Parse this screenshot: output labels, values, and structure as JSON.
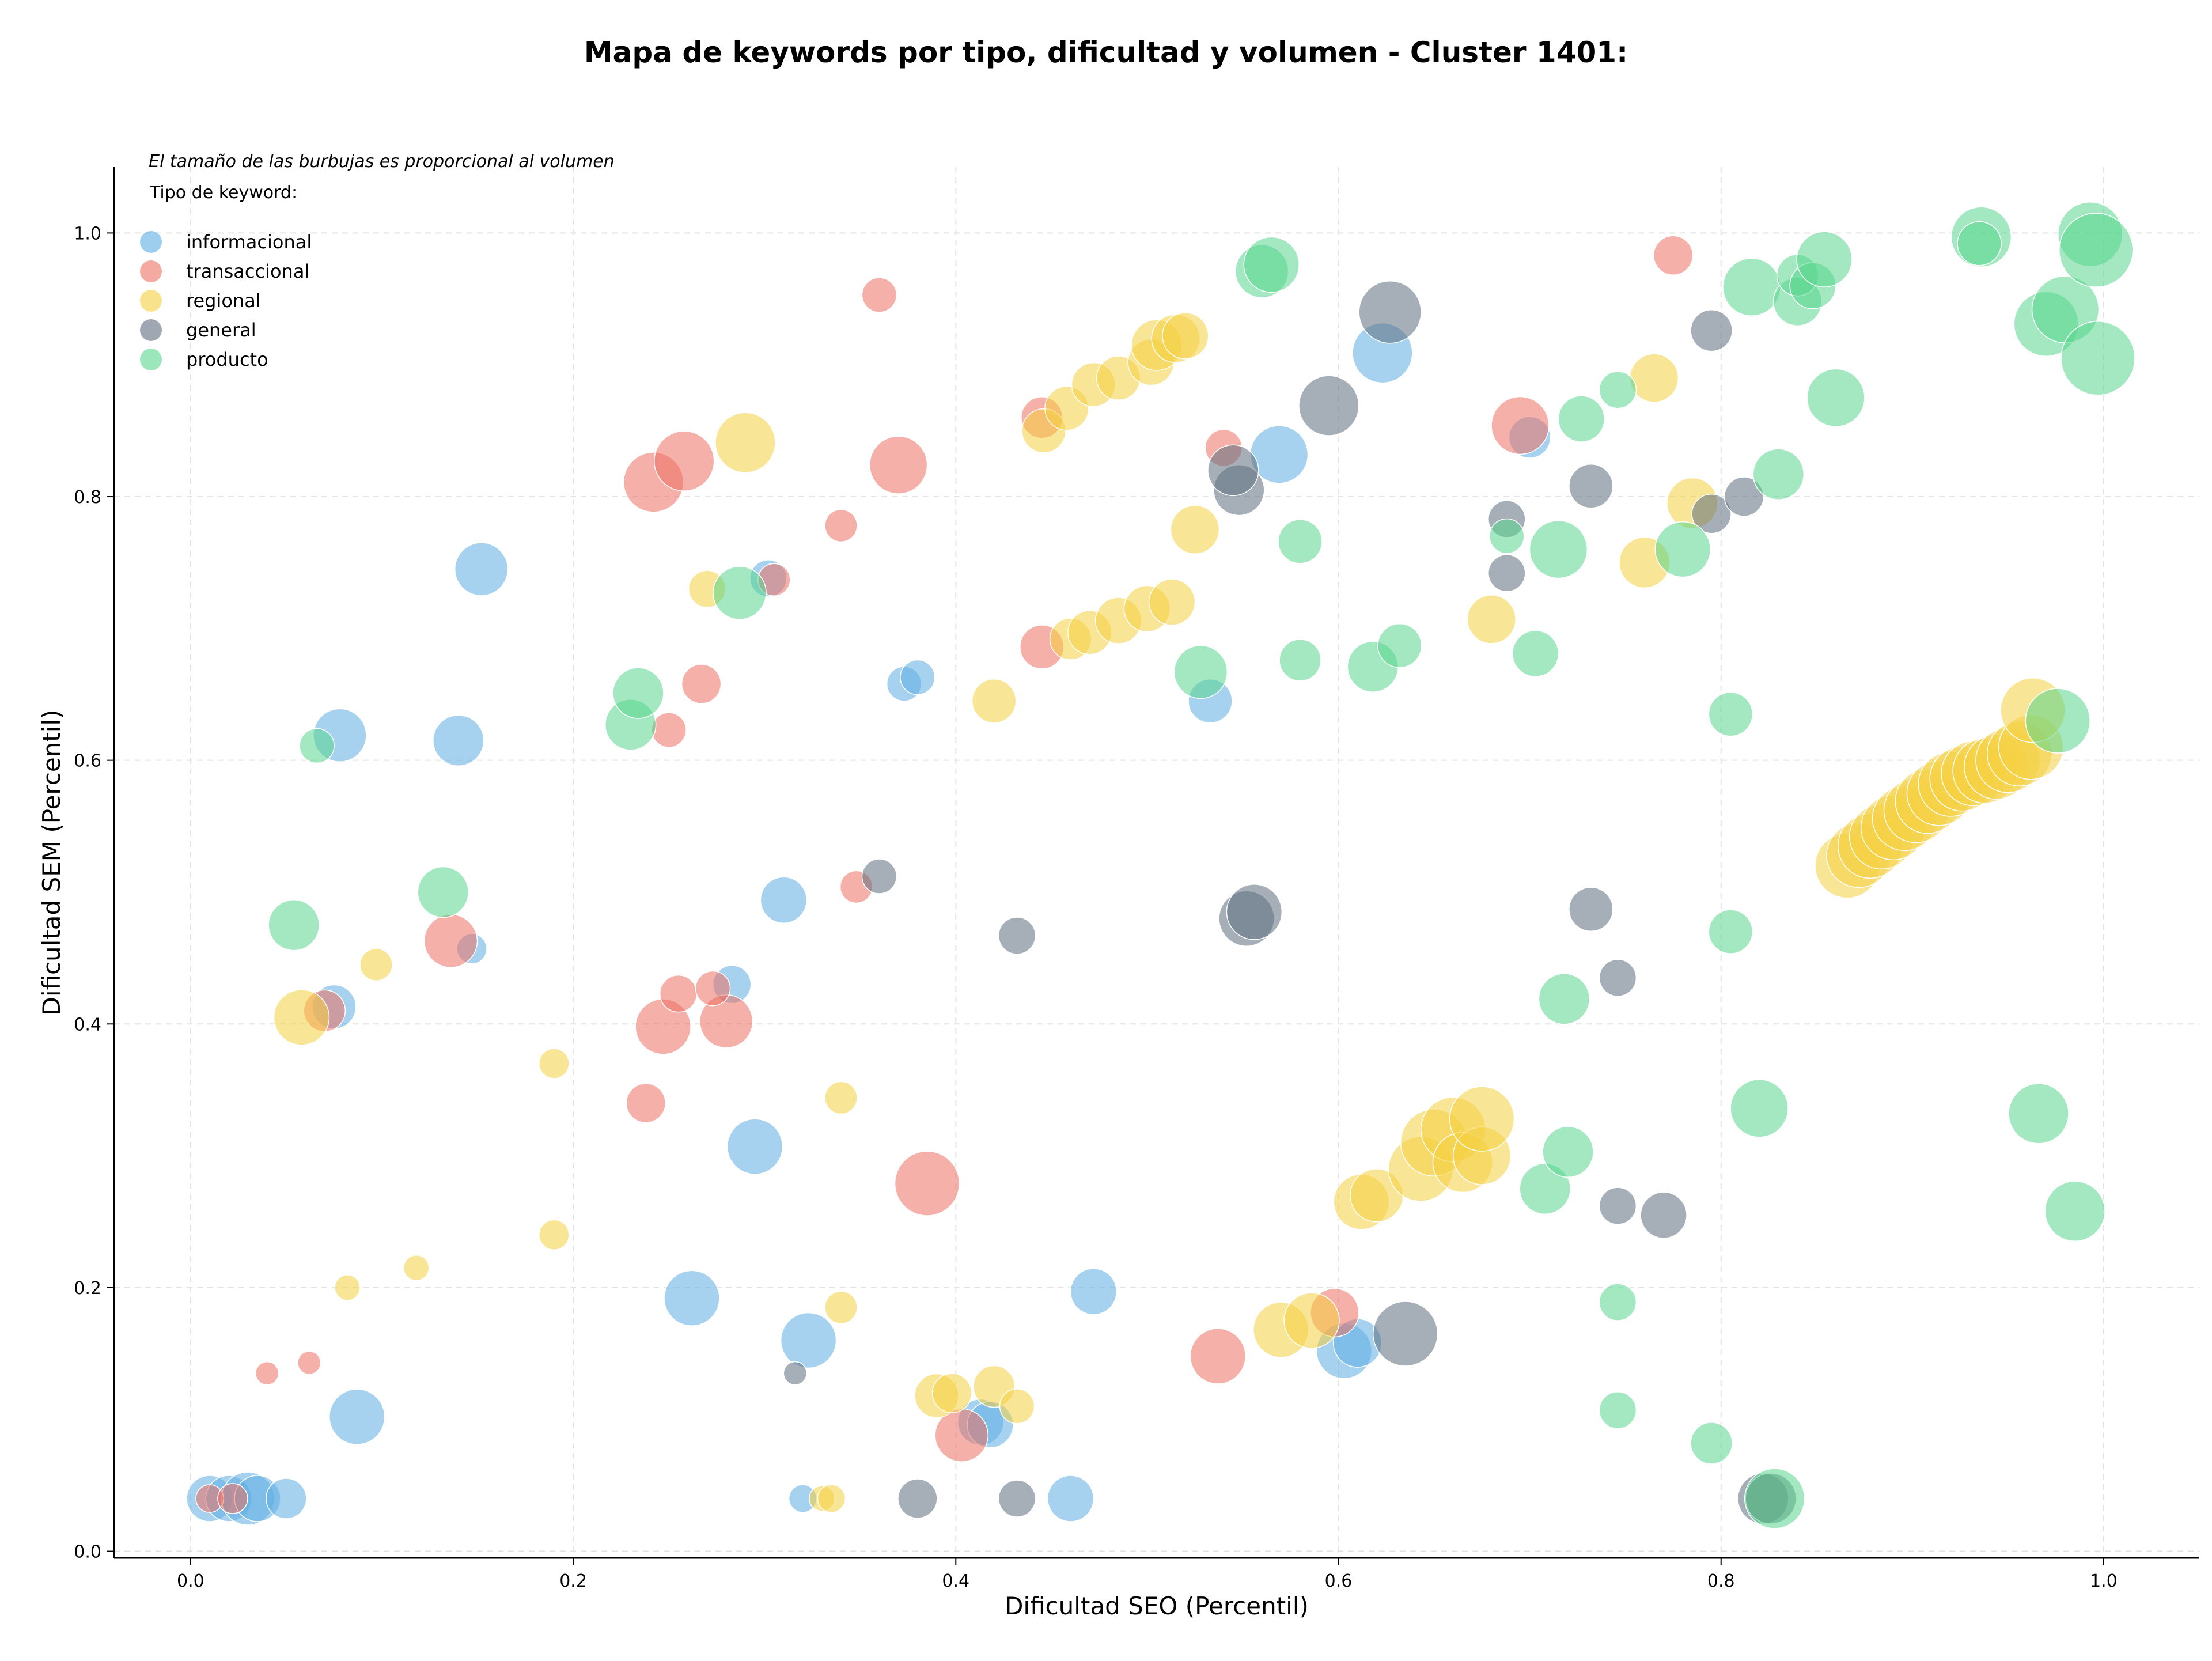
{
  "chart_data": {
    "type": "scatter",
    "title": "Mapa de keywords por tipo, dificultad y volumen - Cluster 1401:",
    "xlabel": "Dificultad SEO (Percentil)",
    "ylabel": "Dificultad SEM (Percentil)",
    "xlim": [
      -0.04,
      1.05
    ],
    "ylim": [
      -0.005,
      1.05
    ],
    "x_ticks": [
      "0.0",
      "0.2",
      "0.4",
      "0.6",
      "0.8",
      "1.0"
    ],
    "y_ticks": [
      "0.0",
      "0.2",
      "0.4",
      "0.6",
      "0.8",
      "1.0"
    ],
    "grid": true,
    "note": "El tamaño de las burbujas es proporcional al volumen",
    "legend": {
      "title": "Tipo de keyword:",
      "position": "top-left"
    },
    "series": [
      {
        "name": "informacional",
        "color": "#5DADE2",
        "points": [
          [
            0.01,
            0.04,
            40
          ],
          [
            0.02,
            0.04,
            40
          ],
          [
            0.03,
            0.04,
            46
          ],
          [
            0.035,
            0.04,
            40
          ],
          [
            0.05,
            0.04,
            35
          ],
          [
            0.087,
            0.102,
            48
          ],
          [
            0.152,
            0.745,
            46
          ],
          [
            0.078,
            0.619,
            46
          ],
          [
            0.14,
            0.615,
            44
          ],
          [
            0.075,
            0.413,
            38
          ],
          [
            0.147,
            0.457,
            26
          ],
          [
            0.283,
            0.43,
            33
          ],
          [
            0.295,
            0.307,
            48
          ],
          [
            0.262,
            0.192,
            48
          ],
          [
            0.31,
            0.494,
            40
          ],
          [
            0.302,
            0.738,
            32
          ],
          [
            0.373,
            0.658,
            30
          ],
          [
            0.38,
            0.663,
            30
          ],
          [
            0.323,
            0.16,
            48
          ],
          [
            0.472,
            0.197,
            40
          ],
          [
            0.413,
            0.098,
            40
          ],
          [
            0.418,
            0.096,
            40
          ],
          [
            0.46,
            0.04,
            40
          ],
          [
            0.32,
            0.04,
            24
          ],
          [
            0.533,
            0.645,
            38
          ],
          [
            0.569,
            0.832,
            50
          ],
          [
            0.623,
            0.909,
            52
          ],
          [
            0.603,
            0.152,
            48
          ],
          [
            0.61,
            0.158,
            42
          ],
          [
            0.7,
            0.845,
            36
          ]
        ]
      },
      {
        "name": "transaccional",
        "color": "#EC7063",
        "points": [
          [
            0.01,
            0.04,
            24
          ],
          [
            0.022,
            0.04,
            26
          ],
          [
            0.04,
            0.135,
            20
          ],
          [
            0.062,
            0.143,
            20
          ],
          [
            0.07,
            0.41,
            36
          ],
          [
            0.136,
            0.463,
            46
          ],
          [
            0.238,
            0.34,
            34
          ],
          [
            0.247,
            0.398,
            48
          ],
          [
            0.255,
            0.423,
            32
          ],
          [
            0.28,
            0.402,
            46
          ],
          [
            0.273,
            0.427,
            30
          ],
          [
            0.25,
            0.623,
            30
          ],
          [
            0.267,
            0.658,
            34
          ],
          [
            0.242,
            0.811,
            52
          ],
          [
            0.258,
            0.827,
            52
          ],
          [
            0.305,
            0.737,
            28
          ],
          [
            0.348,
            0.504,
            28
          ],
          [
            0.36,
            0.953,
            30
          ],
          [
            0.34,
            0.778,
            28
          ],
          [
            0.37,
            0.824,
            50
          ],
          [
            0.385,
            0.279,
            56
          ],
          [
            0.403,
            0.088,
            46
          ],
          [
            0.445,
            0.686,
            38
          ],
          [
            0.445,
            0.86,
            36
          ],
          [
            0.537,
            0.148,
            48
          ],
          [
            0.54,
            0.837,
            32
          ],
          [
            0.598,
            0.181,
            42
          ],
          [
            0.695,
            0.854,
            50
          ],
          [
            0.775,
            0.983,
            34
          ]
        ]
      },
      {
        "name": "regional",
        "color": "#F4D03F",
        "points": [
          [
            0.058,
            0.405,
            48
          ],
          [
            0.097,
            0.445,
            28
          ],
          [
            0.082,
            0.2,
            22
          ],
          [
            0.118,
            0.215,
            22
          ],
          [
            0.19,
            0.37,
            26
          ],
          [
            0.19,
            0.24,
            26
          ],
          [
            0.27,
            0.73,
            32
          ],
          [
            0.29,
            0.841,
            52
          ],
          [
            0.34,
            0.344,
            28
          ],
          [
            0.34,
            0.185,
            28
          ],
          [
            0.33,
            0.04,
            22
          ],
          [
            0.335,
            0.04,
            24
          ],
          [
            0.39,
            0.118,
            38
          ],
          [
            0.398,
            0.12,
            34
          ],
          [
            0.42,
            0.125,
            36
          ],
          [
            0.432,
            0.11,
            30
          ],
          [
            0.42,
            0.645,
            38
          ],
          [
            0.446,
            0.85,
            38
          ],
          [
            0.46,
            0.692,
            36
          ],
          [
            0.458,
            0.867,
            38
          ],
          [
            0.47,
            0.697,
            38
          ],
          [
            0.472,
            0.885,
            38
          ],
          [
            0.485,
            0.706,
            40
          ],
          [
            0.485,
            0.89,
            38
          ],
          [
            0.5,
            0.715,
            40
          ],
          [
            0.502,
            0.902,
            40
          ],
          [
            0.505,
            0.915,
            44
          ],
          [
            0.513,
            0.72,
            40
          ],
          [
            0.515,
            0.92,
            42
          ],
          [
            0.52,
            0.922,
            40
          ],
          [
            0.525,
            0.775,
            42
          ],
          [
            0.57,
            0.168,
            48
          ],
          [
            0.586,
            0.175,
            48
          ],
          [
            0.612,
            0.265,
            48
          ],
          [
            0.62,
            0.27,
            46
          ],
          [
            0.643,
            0.29,
            56
          ],
          [
            0.65,
            0.31,
            58
          ],
          [
            0.66,
            0.32,
            56
          ],
          [
            0.665,
            0.295,
            52
          ],
          [
            0.675,
            0.3,
            50
          ],
          [
            0.675,
            0.328,
            56
          ],
          [
            0.68,
            0.707,
            42
          ],
          [
            0.76,
            0.75,
            44
          ],
          [
            0.765,
            0.89,
            42
          ],
          [
            0.785,
            0.795,
            44
          ],
          [
            0.866,
            0.52,
            56
          ],
          [
            0.872,
            0.528,
            56
          ],
          [
            0.878,
            0.535,
            56
          ],
          [
            0.884,
            0.542,
            56
          ],
          [
            0.89,
            0.549,
            56
          ],
          [
            0.896,
            0.556,
            56
          ],
          [
            0.902,
            0.562,
            56
          ],
          [
            0.908,
            0.569,
            56
          ],
          [
            0.914,
            0.575,
            56
          ],
          [
            0.92,
            0.582,
            56
          ],
          [
            0.926,
            0.586,
            56
          ],
          [
            0.932,
            0.59,
            56
          ],
          [
            0.938,
            0.592,
            56
          ],
          [
            0.944,
            0.595,
            56
          ],
          [
            0.95,
            0.6,
            56
          ],
          [
            0.956,
            0.605,
            56
          ],
          [
            0.962,
            0.61,
            56
          ],
          [
            0.963,
            0.638,
            56
          ]
        ]
      },
      {
        "name": "general",
        "color": "#5D6D7E",
        "points": [
          [
            0.316,
            0.135,
            20
          ],
          [
            0.36,
            0.512,
            30
          ],
          [
            0.38,
            0.04,
            34
          ],
          [
            0.432,
            0.467,
            32
          ],
          [
            0.432,
            0.04,
            32
          ],
          [
            0.548,
            0.805,
            44
          ],
          [
            0.545,
            0.82,
            44
          ],
          [
            0.552,
            0.48,
            48
          ],
          [
            0.556,
            0.485,
            48
          ],
          [
            0.595,
            0.869,
            52
          ],
          [
            0.627,
            0.94,
            54
          ],
          [
            0.635,
            0.165,
            56
          ],
          [
            0.688,
            0.742,
            32
          ],
          [
            0.688,
            0.783,
            32
          ],
          [
            0.732,
            0.487,
            38
          ],
          [
            0.732,
            0.808,
            38
          ],
          [
            0.746,
            0.435,
            32
          ],
          [
            0.746,
            0.262,
            32
          ],
          [
            0.77,
            0.255,
            40
          ],
          [
            0.795,
            0.926,
            36
          ],
          [
            0.795,
            0.787,
            34
          ],
          [
            0.812,
            0.8,
            34
          ],
          [
            0.822,
            0.04,
            44
          ],
          [
            0.826,
            0.04,
            44
          ]
        ]
      },
      {
        "name": "producto",
        "color": "#58D68D",
        "points": [
          [
            0.066,
            0.611,
            30
          ],
          [
            0.054,
            0.475,
            44
          ],
          [
            0.132,
            0.5,
            44
          ],
          [
            0.23,
            0.627,
            44
          ],
          [
            0.234,
            0.651,
            44
          ],
          [
            0.287,
            0.727,
            46
          ],
          [
            0.528,
            0.667,
            46
          ],
          [
            0.56,
            0.971,
            46
          ],
          [
            0.565,
            0.976,
            48
          ],
          [
            0.58,
            0.766,
            38
          ],
          [
            0.58,
            0.676,
            36
          ],
          [
            0.618,
            0.671,
            44
          ],
          [
            0.632,
            0.687,
            38
          ],
          [
            0.688,
            0.77,
            30
          ],
          [
            0.703,
            0.681,
            40
          ],
          [
            0.715,
            0.76,
            50
          ],
          [
            0.708,
            0.275,
            44
          ],
          [
            0.718,
            0.419,
            44
          ],
          [
            0.72,
            0.303,
            44
          ],
          [
            0.727,
            0.859,
            40
          ],
          [
            0.746,
            0.881,
            32
          ],
          [
            0.746,
            0.189,
            32
          ],
          [
            0.746,
            0.107,
            32
          ],
          [
            0.78,
            0.76,
            48
          ],
          [
            0.795,
            0.082,
            36
          ],
          [
            0.805,
            0.635,
            38
          ],
          [
            0.805,
            0.47,
            38
          ],
          [
            0.816,
            0.959,
            50
          ],
          [
            0.82,
            0.336,
            50
          ],
          [
            0.83,
            0.817,
            44
          ],
          [
            0.84,
            0.948,
            42
          ],
          [
            0.84,
            0.968,
            36
          ],
          [
            0.848,
            0.96,
            40
          ],
          [
            0.854,
            0.98,
            48
          ],
          [
            0.86,
            0.875,
            50
          ],
          [
            0.828,
            0.04,
            52
          ],
          [
            0.936,
            0.997,
            52
          ],
          [
            0.935,
            0.992,
            38
          ],
          [
            0.966,
            0.332,
            52
          ],
          [
            0.97,
            0.931,
            56
          ],
          [
            0.976,
            0.63,
            56
          ],
          [
            0.98,
            0.942,
            58
          ],
          [
            0.985,
            0.258,
            52
          ],
          [
            0.993,
            0.999,
            56
          ],
          [
            0.996,
            0.987,
            64
          ],
          [
            0.997,
            0.905,
            64
          ]
        ]
      }
    ]
  }
}
